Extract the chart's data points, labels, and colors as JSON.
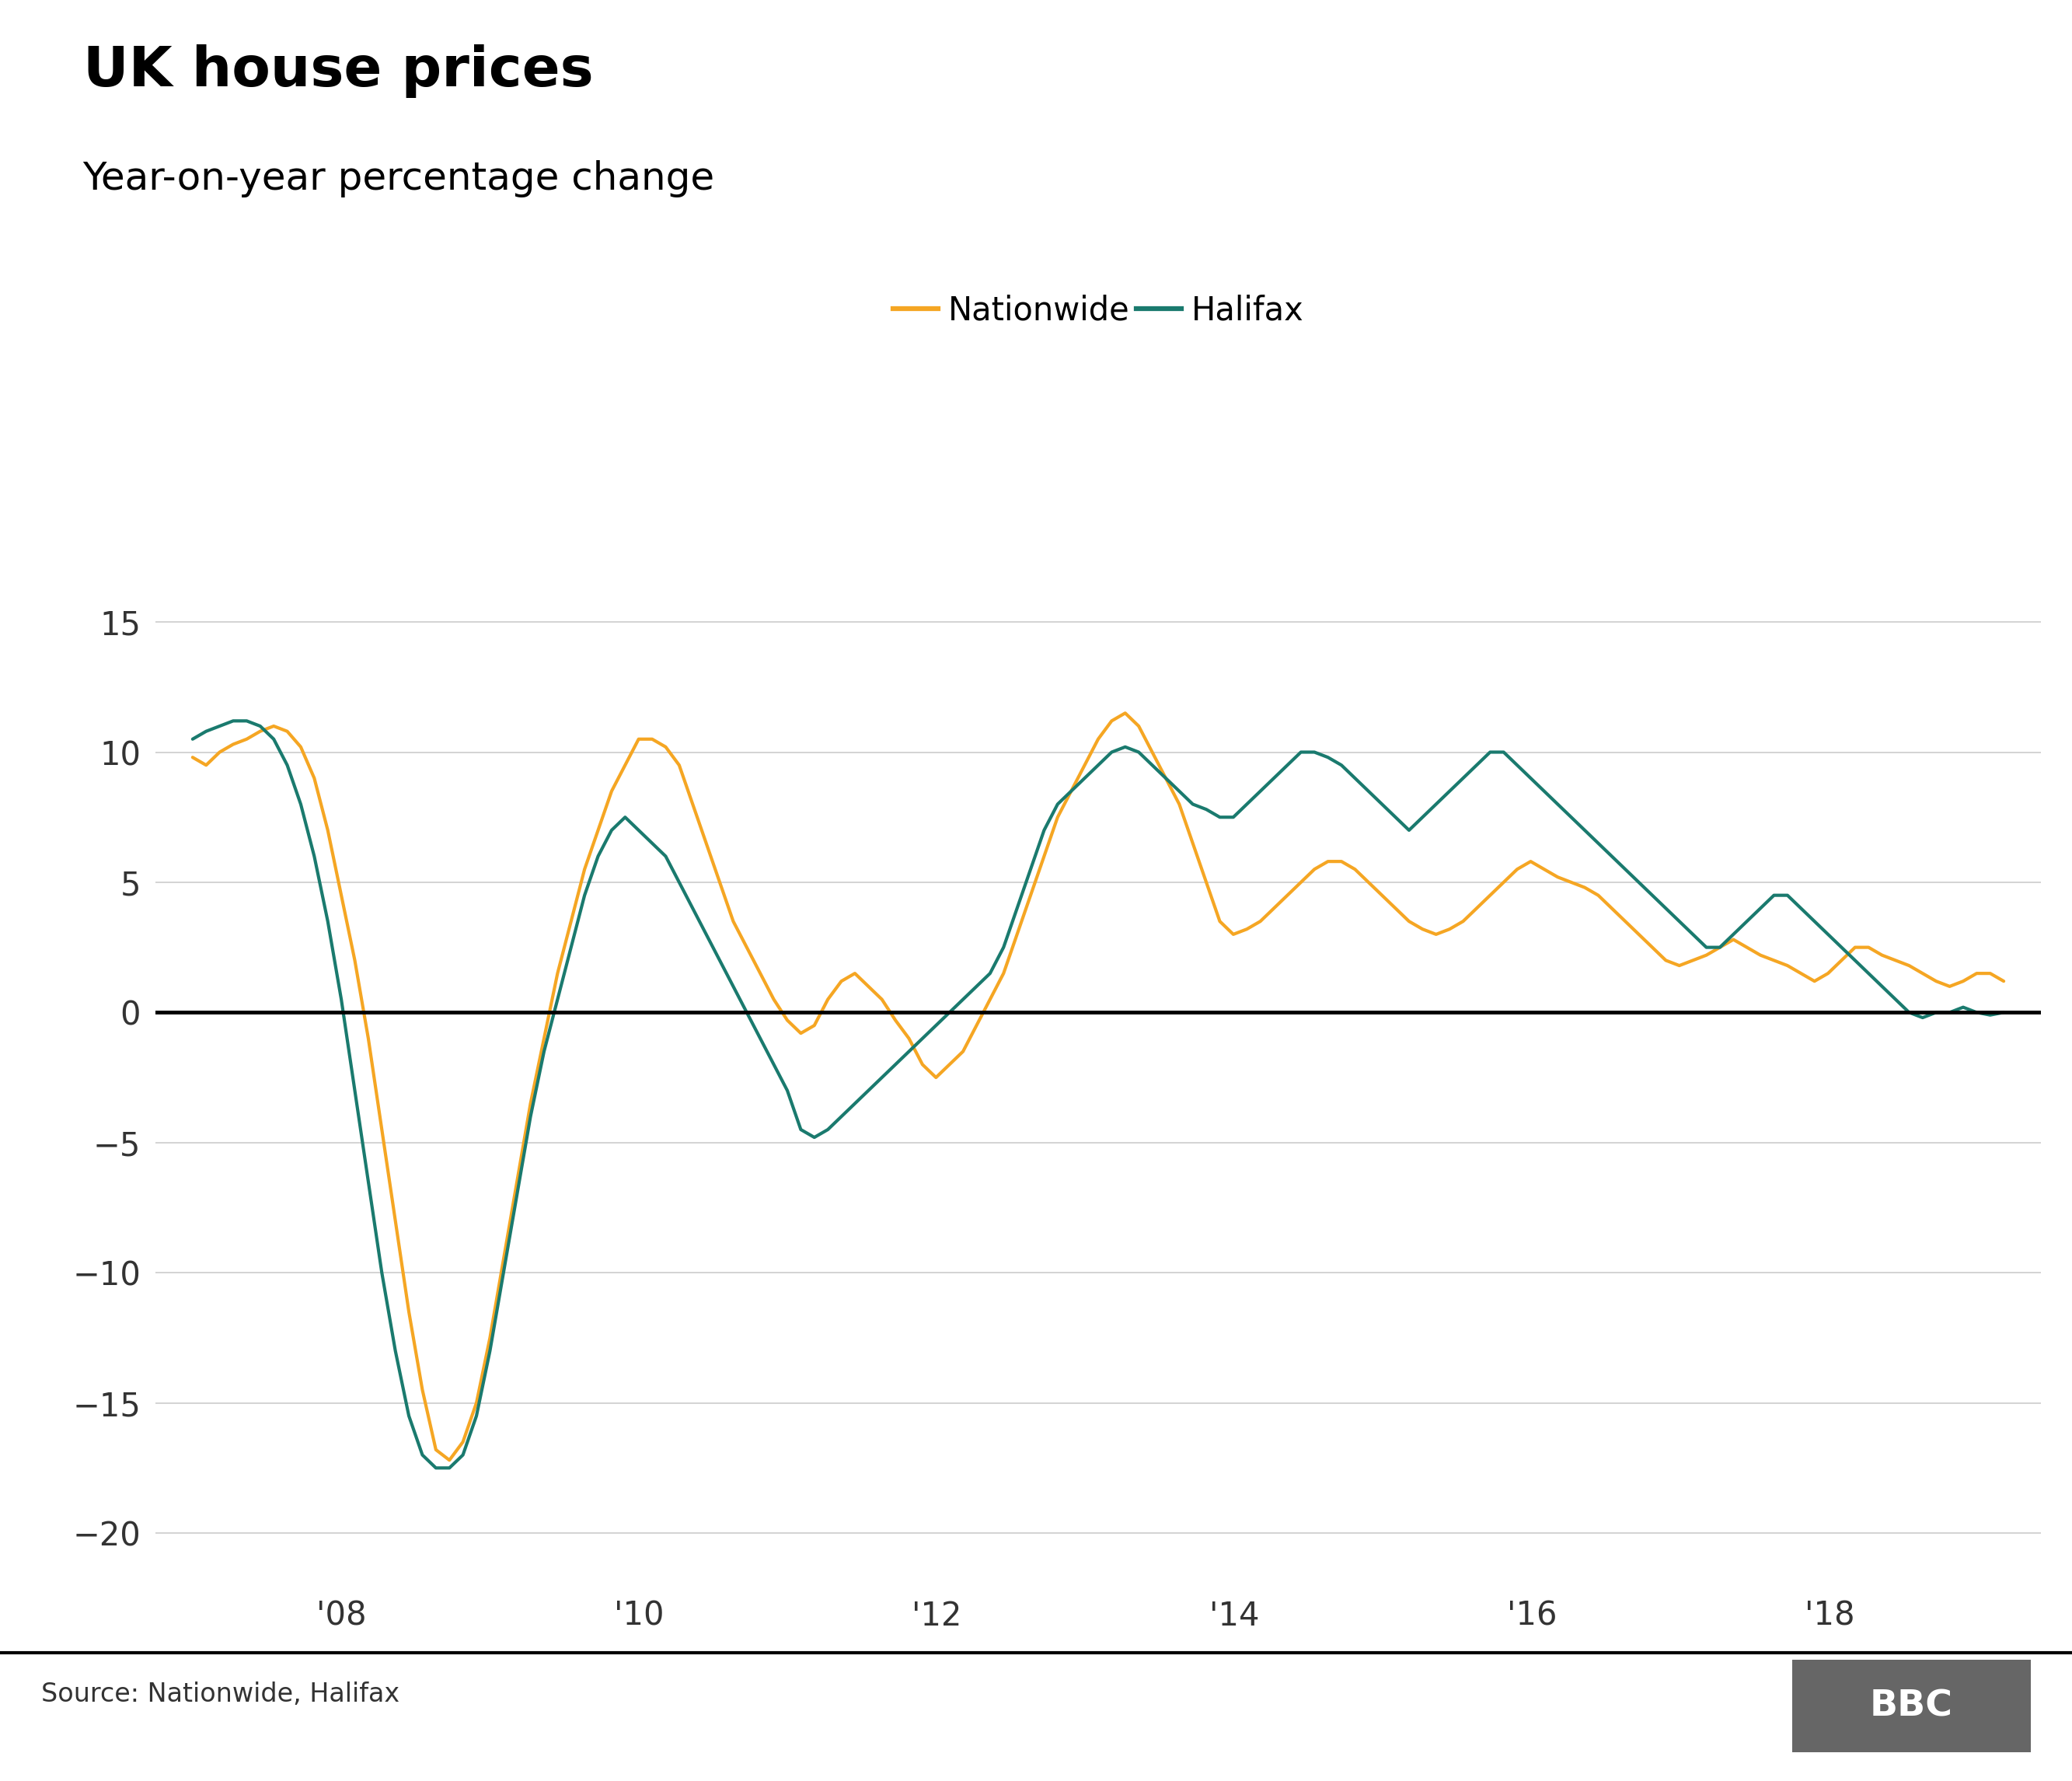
{
  "title": "UK house prices",
  "subtitle": "Year-on-year percentage change",
  "source": "Source: Nationwide, Halifax",
  "nationwide_color": "#f5a623",
  "halifax_color": "#1a7a6e",
  "zero_line_color": "#000000",
  "grid_color": "#cccccc",
  "background_color": "#ffffff",
  "legend_labels": [
    "Nationwide",
    "Halifax"
  ],
  "ylim": [
    -22,
    17
  ],
  "yticks": [
    -20,
    -15,
    -10,
    -5,
    0,
    5,
    10,
    15
  ],
  "xtick_labels": [
    "'08",
    "'10",
    "'12",
    "'14",
    "'16",
    "'18"
  ],
  "title_fontsize": 52,
  "subtitle_fontsize": 36,
  "tick_fontsize": 30,
  "legend_fontsize": 30,
  "source_fontsize": 24,
  "line_width": 3.0,
  "nationwide": [
    9.8,
    9.5,
    10.0,
    10.3,
    10.5,
    10.8,
    11.0,
    10.8,
    10.2,
    9.0,
    7.0,
    4.5,
    2.0,
    -1.0,
    -4.5,
    -8.0,
    -11.5,
    -14.5,
    -16.8,
    -17.2,
    -16.5,
    -15.0,
    -12.5,
    -9.5,
    -6.5,
    -3.5,
    -1.0,
    1.5,
    3.5,
    5.5,
    7.0,
    8.5,
    9.5,
    10.5,
    10.5,
    10.2,
    9.5,
    8.0,
    6.5,
    5.0,
    3.5,
    2.5,
    1.5,
    0.5,
    -0.3,
    -0.8,
    -0.5,
    0.5,
    1.2,
    1.5,
    1.0,
    0.5,
    -0.3,
    -1.0,
    -2.0,
    -2.5,
    -2.0,
    -1.5,
    -0.5,
    0.5,
    1.5,
    3.0,
    4.5,
    6.0,
    7.5,
    8.5,
    9.5,
    10.5,
    11.2,
    11.5,
    11.0,
    10.0,
    9.0,
    8.0,
    6.5,
    5.0,
    3.5,
    3.0,
    3.2,
    3.5,
    4.0,
    4.5,
    5.0,
    5.5,
    5.8,
    5.8,
    5.5,
    5.0,
    4.5,
    4.0,
    3.5,
    3.2,
    3.0,
    3.2,
    3.5,
    4.0,
    4.5,
    5.0,
    5.5,
    5.8,
    5.5,
    5.2,
    5.0,
    4.8,
    4.5,
    4.0,
    3.5,
    3.0,
    2.5,
    2.0,
    1.8,
    2.0,
    2.2,
    2.5,
    2.8,
    2.5,
    2.2,
    2.0,
    1.8,
    1.5,
    1.2,
    1.5,
    2.0,
    2.5,
    2.5,
    2.2,
    2.0,
    1.8,
    1.5,
    1.2,
    1.0,
    1.2,
    1.5,
    1.5,
    1.2
  ],
  "halifax": [
    10.5,
    10.8,
    11.0,
    11.2,
    11.2,
    11.0,
    10.5,
    9.5,
    8.0,
    6.0,
    3.5,
    0.5,
    -3.0,
    -6.5,
    -10.0,
    -13.0,
    -15.5,
    -17.0,
    -17.5,
    -17.5,
    -17.0,
    -15.5,
    -13.0,
    -10.0,
    -7.0,
    -4.0,
    -1.5,
    0.5,
    2.5,
    4.5,
    6.0,
    7.0,
    7.5,
    7.0,
    6.5,
    6.0,
    5.0,
    4.0,
    3.0,
    2.0,
    1.0,
    0.0,
    -1.0,
    -2.0,
    -3.0,
    -4.5,
    -4.8,
    -4.5,
    -4.0,
    -3.5,
    -3.0,
    -2.5,
    -2.0,
    -1.5,
    -1.0,
    -0.5,
    0.0,
    0.5,
    1.0,
    1.5,
    2.5,
    4.0,
    5.5,
    7.0,
    8.0,
    8.5,
    9.0,
    9.5,
    10.0,
    10.2,
    10.0,
    9.5,
    9.0,
    8.5,
    8.0,
    7.8,
    7.5,
    7.5,
    8.0,
    8.5,
    9.0,
    9.5,
    10.0,
    10.0,
    9.8,
    9.5,
    9.0,
    8.5,
    8.0,
    7.5,
    7.0,
    7.5,
    8.0,
    8.5,
    9.0,
    9.5,
    10.0,
    10.0,
    9.5,
    9.0,
    8.5,
    8.0,
    7.5,
    7.0,
    6.5,
    6.0,
    5.5,
    5.0,
    4.5,
    4.0,
    3.5,
    3.0,
    2.5,
    2.5,
    3.0,
    3.5,
    4.0,
    4.5,
    4.5,
    4.0,
    3.5,
    3.0,
    2.5,
    2.0,
    1.5,
    1.0,
    0.5,
    0.0,
    -0.2,
    0.0,
    0.0,
    0.2,
    0.0,
    -0.1,
    0.0
  ]
}
